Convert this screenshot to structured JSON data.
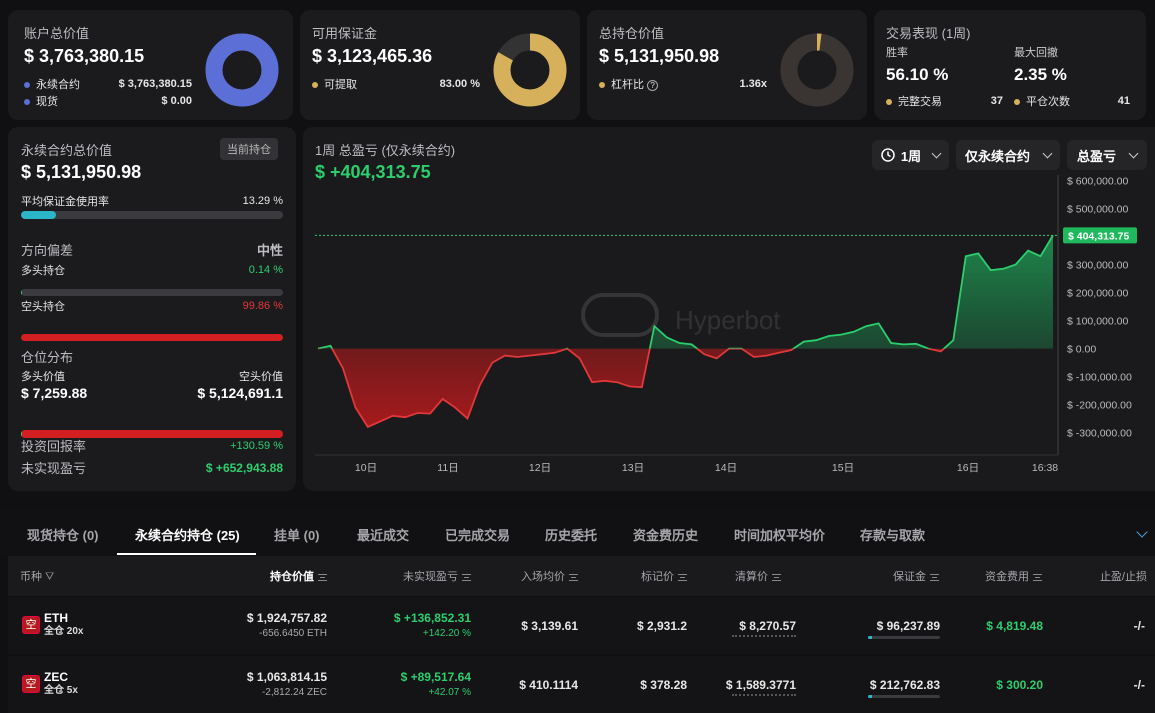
{
  "colors": {
    "accent_blue": "#5b6fd6",
    "accent_gold": "#d6b05a",
    "green": "#2ccf6e",
    "red": "#e0383a",
    "teal": "#2bb5c8"
  },
  "account": {
    "title": "账户总价值",
    "value": "$ 3,763,380.15",
    "perp_label": "永续合约",
    "perp_value": "$ 3,763,380.15",
    "spot_label": "现货",
    "spot_value": "$ 0.00",
    "perp_share": 1.0
  },
  "margin": {
    "title": "可用保证金",
    "value": "$ 3,123,465.36",
    "withdraw_label": "可提取",
    "withdraw_pct": "83.00 %",
    "fill": 0.83
  },
  "holding": {
    "title": "总持仓价值",
    "value": "$ 5,131,950.98",
    "leverage_label": "杠杆比",
    "leverage_value": "1.36x",
    "fill": 0.02
  },
  "perf": {
    "title": "交易表现 (1周)",
    "win_label": "胜率",
    "win_value": "56.10 %",
    "dd_label": "最大回撤",
    "dd_value": "2.35 %",
    "completed_label": "完整交易",
    "completed_value": "37",
    "close_label": "平仓次数",
    "close_value": "41"
  },
  "perp_panel": {
    "title": "永续合约总价值",
    "badge": "当前持仓",
    "value": "$ 5,131,950.98",
    "margin_usage_label": "平均保证金使用率",
    "margin_usage_value": "13.29 %",
    "margin_usage": 0.1329,
    "bias_label": "方向偏差",
    "bias_value": "中性",
    "long_label": "多头持仓",
    "long_pct": "0.14 %",
    "long": 0.0014,
    "short_label": "空头持仓",
    "short_pct": "99.86 %",
    "short": 0.9986,
    "dist_label": "仓位分布",
    "long_value_label": "多头价值",
    "short_value_label": "空头价值",
    "long_value": "$ 7,259.88",
    "short_value": "$ 5,124,691.1",
    "dist_long": 0.0014,
    "roi_label": "投资回报率",
    "roi_value": "+130.59 %",
    "upnl_label": "未实现盈亏",
    "upnl_value": "$ +652,943.88"
  },
  "chart_panel": {
    "title": "1周 总盈亏 (仅永续合约)",
    "value": "$ +404,313.75",
    "period_btn": "1周",
    "scope_btn": "仅永续合约",
    "metric_btn": "总盈亏",
    "watermark": "Hyperbot",
    "current_label": "$ 404,313.75"
  },
  "chart_data": {
    "type": "area",
    "x_labels": [
      "10日",
      "11日",
      "12日",
      "13日",
      "14日",
      "15日",
      "16日",
      "16:38"
    ],
    "y_ticks": [
      "$ 600,000.00",
      "$ 500,000.00",
      "$ 400,000.00",
      "$ 300,000.00",
      "$ 200,000.00",
      "$ 100,000.00",
      "$ 0.00",
      "$ -100,000.00",
      "$ -200,000.00",
      "$ -300,000.00"
    ],
    "y_tick_values": [
      600000,
      500000,
      400000,
      300000,
      200000,
      100000,
      0,
      -100000,
      -200000,
      -300000
    ],
    "ylim": [
      -380000,
      620000
    ],
    "values": [
      0,
      10000,
      -70000,
      -210000,
      -280000,
      -260000,
      -240000,
      -245000,
      -230000,
      -232000,
      -180000,
      -210000,
      -250000,
      -130000,
      -50000,
      -25000,
      -30000,
      -25000,
      -20000,
      -15000,
      0,
      -35000,
      -120000,
      -115000,
      -120000,
      -135000,
      -138000,
      80000,
      40000,
      20000,
      15000,
      -20000,
      -35000,
      0,
      0,
      -30000,
      -25000,
      -15000,
      -5000,
      25000,
      30000,
      45000,
      50000,
      60000,
      80000,
      90000,
      20000,
      15000,
      17000,
      0,
      -10000,
      30000,
      330000,
      340000,
      280000,
      285000,
      300000,
      350000,
      330000,
      404313.75
    ]
  },
  "tabs": [
    {
      "label": "现货持仓 (0)",
      "active": false
    },
    {
      "label": "永续合约持仓 (25)",
      "active": true
    },
    {
      "label": "挂单 (0)",
      "active": false
    },
    {
      "label": "最近成交",
      "active": false
    },
    {
      "label": "已完成交易",
      "active": false
    },
    {
      "label": "历史委托",
      "active": false
    },
    {
      "label": "资金费历史",
      "active": false
    },
    {
      "label": "时间加权平均价",
      "active": false
    },
    {
      "label": "存款与取款",
      "active": false
    }
  ],
  "table": {
    "headers": [
      "币种",
      "持仓价值",
      "未实现盈亏",
      "入场均价",
      "标记价",
      "清算价",
      "保证金",
      "资金费用",
      "止盈/止损"
    ],
    "rows": [
      {
        "side": "空",
        "coin": "ETH",
        "mode": "全仓 20x",
        "value": "$ 1,924,757.82",
        "size": "-656.6450 ETH",
        "upnl": "$ +136,852.31",
        "upnl_pct": "+142.20 %",
        "entry": "$ 3,139.61",
        "mark": "$ 2,931.2",
        "liq": "$ 8,270.57",
        "margin": "$ 96,237.89",
        "margin_fill": 0.05,
        "funding": "$ 4,819.48",
        "tpsl": "-/-"
      },
      {
        "side": "空",
        "coin": "ZEC",
        "mode": "全仓 5x",
        "value": "$ 1,063,814.15",
        "size": "-2,812.24 ZEC",
        "upnl": "$ +89,517.64",
        "upnl_pct": "+42.07 %",
        "entry": "$ 410.1114",
        "mark": "$ 378.28",
        "liq": "$ 1,589.3771",
        "margin": "$ 212,762.83",
        "margin_fill": 0.05,
        "funding": "$ 300.20",
        "tpsl": "-/-"
      }
    ]
  }
}
